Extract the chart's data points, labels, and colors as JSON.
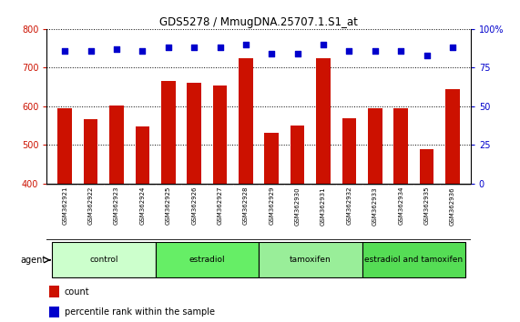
{
  "title": "GDS5278 / MmugDNA.25707.1.S1_at",
  "samples": [
    "GSM362921",
    "GSM362922",
    "GSM362923",
    "GSM362924",
    "GSM362925",
    "GSM362926",
    "GSM362927",
    "GSM362928",
    "GSM362929",
    "GSM362930",
    "GSM362931",
    "GSM362932",
    "GSM362933",
    "GSM362934",
    "GSM362935",
    "GSM362936"
  ],
  "counts": [
    594,
    567,
    602,
    547,
    665,
    660,
    654,
    724,
    531,
    549,
    724,
    568,
    595,
    596,
    490,
    644
  ],
  "percentiles": [
    86,
    86,
    87,
    86,
    88,
    88,
    88,
    90,
    84,
    84,
    90,
    86,
    86,
    86,
    83,
    88
  ],
  "ylim_left": [
    400,
    800
  ],
  "ylim_right": [
    0,
    100
  ],
  "yticks_left": [
    400,
    500,
    600,
    700,
    800
  ],
  "yticks_right": [
    0,
    25,
    50,
    75,
    100
  ],
  "groups": [
    {
      "label": "control",
      "start": 0,
      "end": 4,
      "color": "#ccffcc"
    },
    {
      "label": "estradiol",
      "start": 4,
      "end": 8,
      "color": "#66ee66"
    },
    {
      "label": "tamoxifen",
      "start": 8,
      "end": 12,
      "color": "#99ee99"
    },
    {
      "label": "estradiol and tamoxifen",
      "start": 12,
      "end": 16,
      "color": "#55dd55"
    }
  ],
  "bar_color": "#cc1100",
  "dot_color": "#0000cc",
  "bar_width": 0.55,
  "grid_color": "black",
  "agent_label": "agent",
  "legend_count_label": "count",
  "legend_pct_label": "percentile rank within the sample",
  "bg_color": "#ffffff",
  "tick_area_color": "#c8c8c8"
}
